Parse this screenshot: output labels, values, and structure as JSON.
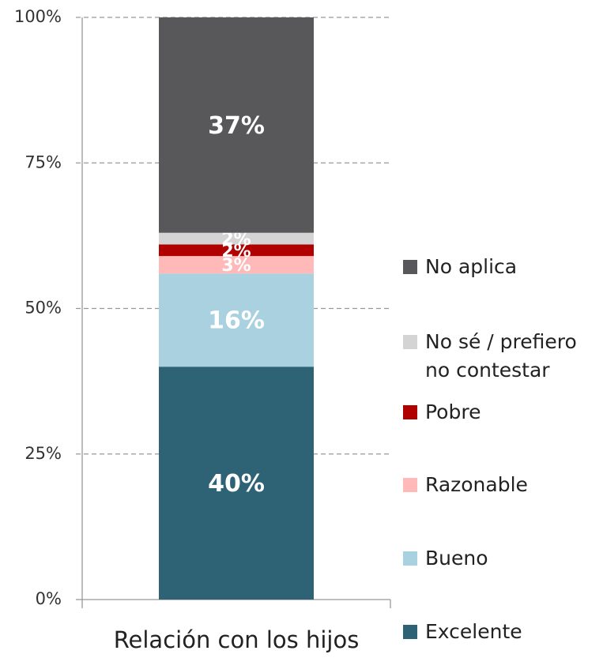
{
  "chart_data": {
    "type": "stacked_bar",
    "categories": [
      "Relación con los hijos"
    ],
    "series": [
      {
        "name": "Excelente",
        "color": "#2e6275",
        "values": [
          40
        ],
        "value_labels": [
          "40%"
        ]
      },
      {
        "name": "Bueno",
        "color": "#a9d1e0",
        "values": [
          16
        ],
        "value_labels": [
          "16%"
        ]
      },
      {
        "name": "Razonable",
        "color": "#ffb9b9",
        "values": [
          3
        ],
        "value_labels": [
          "3%"
        ]
      },
      {
        "name": "Pobre",
        "color": "#b00000",
        "values": [
          2
        ],
        "value_labels": [
          "2%"
        ]
      },
      {
        "name": "No sé / prefiero no contestar",
        "color": "#d4d4d4",
        "values": [
          2
        ],
        "value_labels": [
          "2%"
        ]
      },
      {
        "name": "No aplica",
        "color": "#58585a",
        "values": [
          37
        ],
        "value_labels": [
          "37%"
        ]
      }
    ],
    "ylim": [
      0,
      100
    ],
    "yticks": [
      {
        "value": 0,
        "label": "0%"
      },
      {
        "value": 25,
        "label": "25%"
      },
      {
        "value": 50,
        "label": "50%"
      },
      {
        "value": 75,
        "label": "75%"
      },
      {
        "value": 100,
        "label": "100%"
      }
    ],
    "grid": true,
    "legend": "right"
  }
}
